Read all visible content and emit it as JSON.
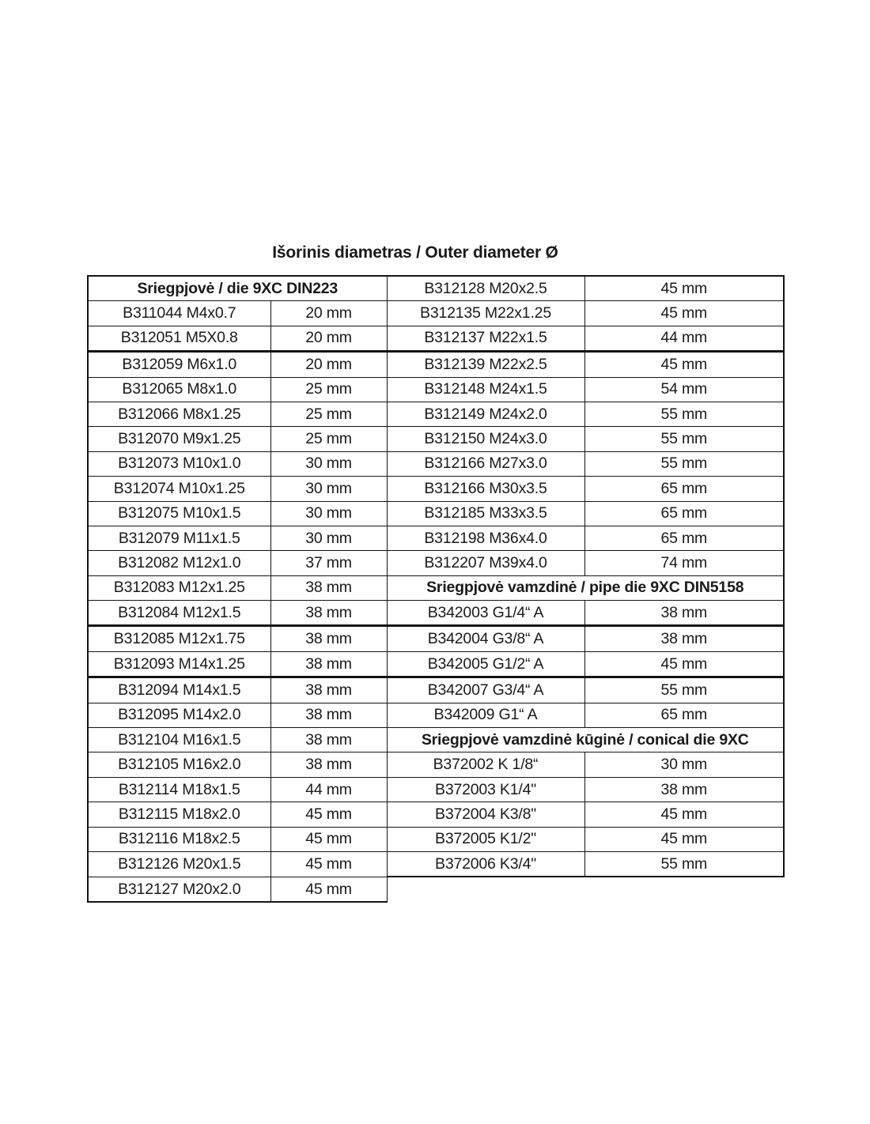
{
  "title": "Išorinis diametras / Outer diameter Ø",
  "colors": {
    "ink": "#1a1a1a",
    "line": "#141414"
  },
  "table": {
    "columns": [
      "code",
      "outer_diameter"
    ],
    "rows": [
      {
        "left": {
          "header": "Sriegpjovė / die 9XC DIN223"
        },
        "right": {
          "code": "B312128 M20x2.5",
          "size": "45 mm"
        }
      },
      {
        "left": {
          "code": "B311044 M4x0.7",
          "size": "20 mm"
        },
        "right": {
          "code": "B312135 M22x1.25",
          "size": "45 mm"
        }
      },
      {
        "left": {
          "code": "B312051 M5X0.8",
          "size": "20 mm"
        },
        "right": {
          "code": "B312137 M22x1.5",
          "size": "44 mm"
        }
      },
      {
        "left": {
          "code": "B312059 M6x1.0",
          "size": "20 mm"
        },
        "right": {
          "code": "B312139 M22x2.5",
          "size": "45 mm"
        }
      },
      {
        "left": {
          "code": "B312065 M8x1.0",
          "size": "25 mm"
        },
        "right": {
          "code": "B312148 M24x1.5",
          "size": "54 mm"
        }
      },
      {
        "left": {
          "code": "B312066 M8x1.25",
          "size": "25 mm"
        },
        "right": {
          "code": "B312149 M24x2.0",
          "size": "55 mm"
        }
      },
      {
        "left": {
          "code": "B312070 M9x1.25",
          "size": "25 mm"
        },
        "right": {
          "code": "B312150 M24x3.0",
          "size": "55 mm"
        }
      },
      {
        "left": {
          "code": "B312073 M10x1.0",
          "size": "30 mm"
        },
        "right": {
          "code": "B312166 M27x3.0",
          "size": "55 mm"
        }
      },
      {
        "left": {
          "code": "B312074 M10x1.25",
          "size": "30 mm"
        },
        "right": {
          "code": "B312166 M30x3.5",
          "size": "65 mm"
        }
      },
      {
        "left": {
          "code": "B312075 M10x1.5",
          "size": "30 mm"
        },
        "right": {
          "code": "B312185 M33x3.5",
          "size": "65 mm"
        }
      },
      {
        "left": {
          "code": "B312079 M11x1.5",
          "size": "30 mm"
        },
        "right": {
          "code": "B312198 M36x4.0",
          "size": "65 mm"
        }
      },
      {
        "left": {
          "code": "B312082 M12x1.0",
          "size": "37 mm"
        },
        "right": {
          "code": "B312207 M39x4.0",
          "size": "74 mm"
        }
      },
      {
        "left": {
          "code": "B312083 M12x1.25",
          "size": "38 mm"
        },
        "right": {
          "header": "Sriegpjovė vamzdinė / pipe die 9XC DIN5158"
        }
      },
      {
        "left": {
          "code": "B312084 M12x1.5",
          "size": "38 mm"
        },
        "right": {
          "code": "B342003 G1/4“ A",
          "size": "38 mm"
        }
      },
      {
        "left": {
          "code": "B312085 M12x1.75",
          "size": "38 mm"
        },
        "right": {
          "code": "B342004 G3/8“ A",
          "size": "38 mm"
        }
      },
      {
        "left": {
          "code": "B312093 M14x1.25",
          "size": "38 mm"
        },
        "right": {
          "code": "B342005 G1/2“ A",
          "size": "45 mm"
        }
      },
      {
        "left": {
          "code": "B312094 M14x1.5",
          "size": "38 mm"
        },
        "right": {
          "code": "B342007 G3/4“ A",
          "size": "55 mm"
        }
      },
      {
        "left": {
          "code": "B312095 M14x2.0",
          "size": "38 mm"
        },
        "right": {
          "code": "B342009 G1“ A",
          "size": "65 mm"
        }
      },
      {
        "left": {
          "code": "B312104 M16x1.5",
          "size": "38 mm"
        },
        "right": {
          "header": "Sriegpjovė vamzdinė kūginė / conical die 9XC"
        }
      },
      {
        "left": {
          "code": "B312105 M16x2.0",
          "size": "38 mm"
        },
        "right": {
          "code": "B372002 K 1/8“",
          "size": "30 mm"
        }
      },
      {
        "left": {
          "code": "B312114 M18x1.5",
          "size": "44 mm"
        },
        "right": {
          "code": "B372003 K1/4\"",
          "size": "38 mm"
        }
      },
      {
        "left": {
          "code": "B312115 M18x2.0",
          "size": "45 mm"
        },
        "right": {
          "code": "B372004 K3/8\"",
          "size": "45 mm"
        }
      },
      {
        "left": {
          "code": "B312116 M18x2.5",
          "size": "45 mm"
        },
        "right": {
          "code": "B372005 K1/2\"",
          "size": "45 mm"
        }
      },
      {
        "left": {
          "code": "B312126 M20x1.5",
          "size": "45 mm"
        },
        "right": {
          "code": "B372006 K3/4\"",
          "size": "55 mm"
        }
      },
      {
        "left": {
          "code": "B312127 M20x2.0",
          "size": "45 mm"
        },
        "right": null
      }
    ]
  }
}
